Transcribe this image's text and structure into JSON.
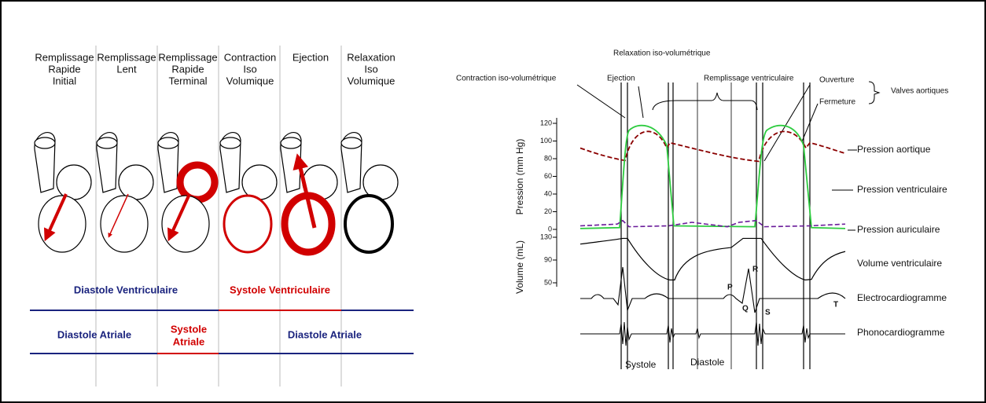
{
  "left": {
    "columns": [
      [
        "Remplissage",
        "Rapide",
        "Initial"
      ],
      [
        "Remplissage",
        "Lent"
      ],
      [
        "Remplissage",
        "Rapide",
        "Terminal"
      ],
      [
        "Contraction",
        "Iso",
        "Volumique"
      ],
      [
        "Ejection"
      ],
      [
        "Relaxation",
        "Iso",
        "Volumique"
      ]
    ],
    "ventricle_phases": [
      "Diastole Ventriculaire",
      "Systole Ventriculaire"
    ],
    "atrial_phases": [
      "Diastole Atriale",
      [
        "Systole",
        "Atriale"
      ],
      "Diastole Atriale"
    ]
  },
  "right": {
    "top_labels": {
      "relaxation": "Relaxation iso-volumétrique",
      "contraction": "Contraction iso-volumétrique",
      "ejection": "Ejection",
      "remplissage": "Remplissage ventriculaire",
      "ouverture": "Ouverture",
      "fermeture": "Fermeture",
      "valves": "Valves aortiques"
    },
    "pressure_axis": {
      "title": "Pression (mm Hg)",
      "ticks": [
        120,
        100,
        80,
        60,
        40,
        20,
        0
      ]
    },
    "volume_axis": {
      "title": "Volume (mL)",
      "ticks": [
        130,
        90,
        50
      ]
    },
    "curve_labels": [
      "Pression aortique",
      "Pression ventriculaire",
      "Pression auriculaire",
      "Volume ventriculaire",
      "Electrocardiogramme",
      "Phonocardiogramme"
    ],
    "ecg_waves": [
      "P",
      "Q",
      "R",
      "S",
      "T"
    ],
    "bottom_labels": [
      "Systole",
      "Diastole"
    ]
  }
}
